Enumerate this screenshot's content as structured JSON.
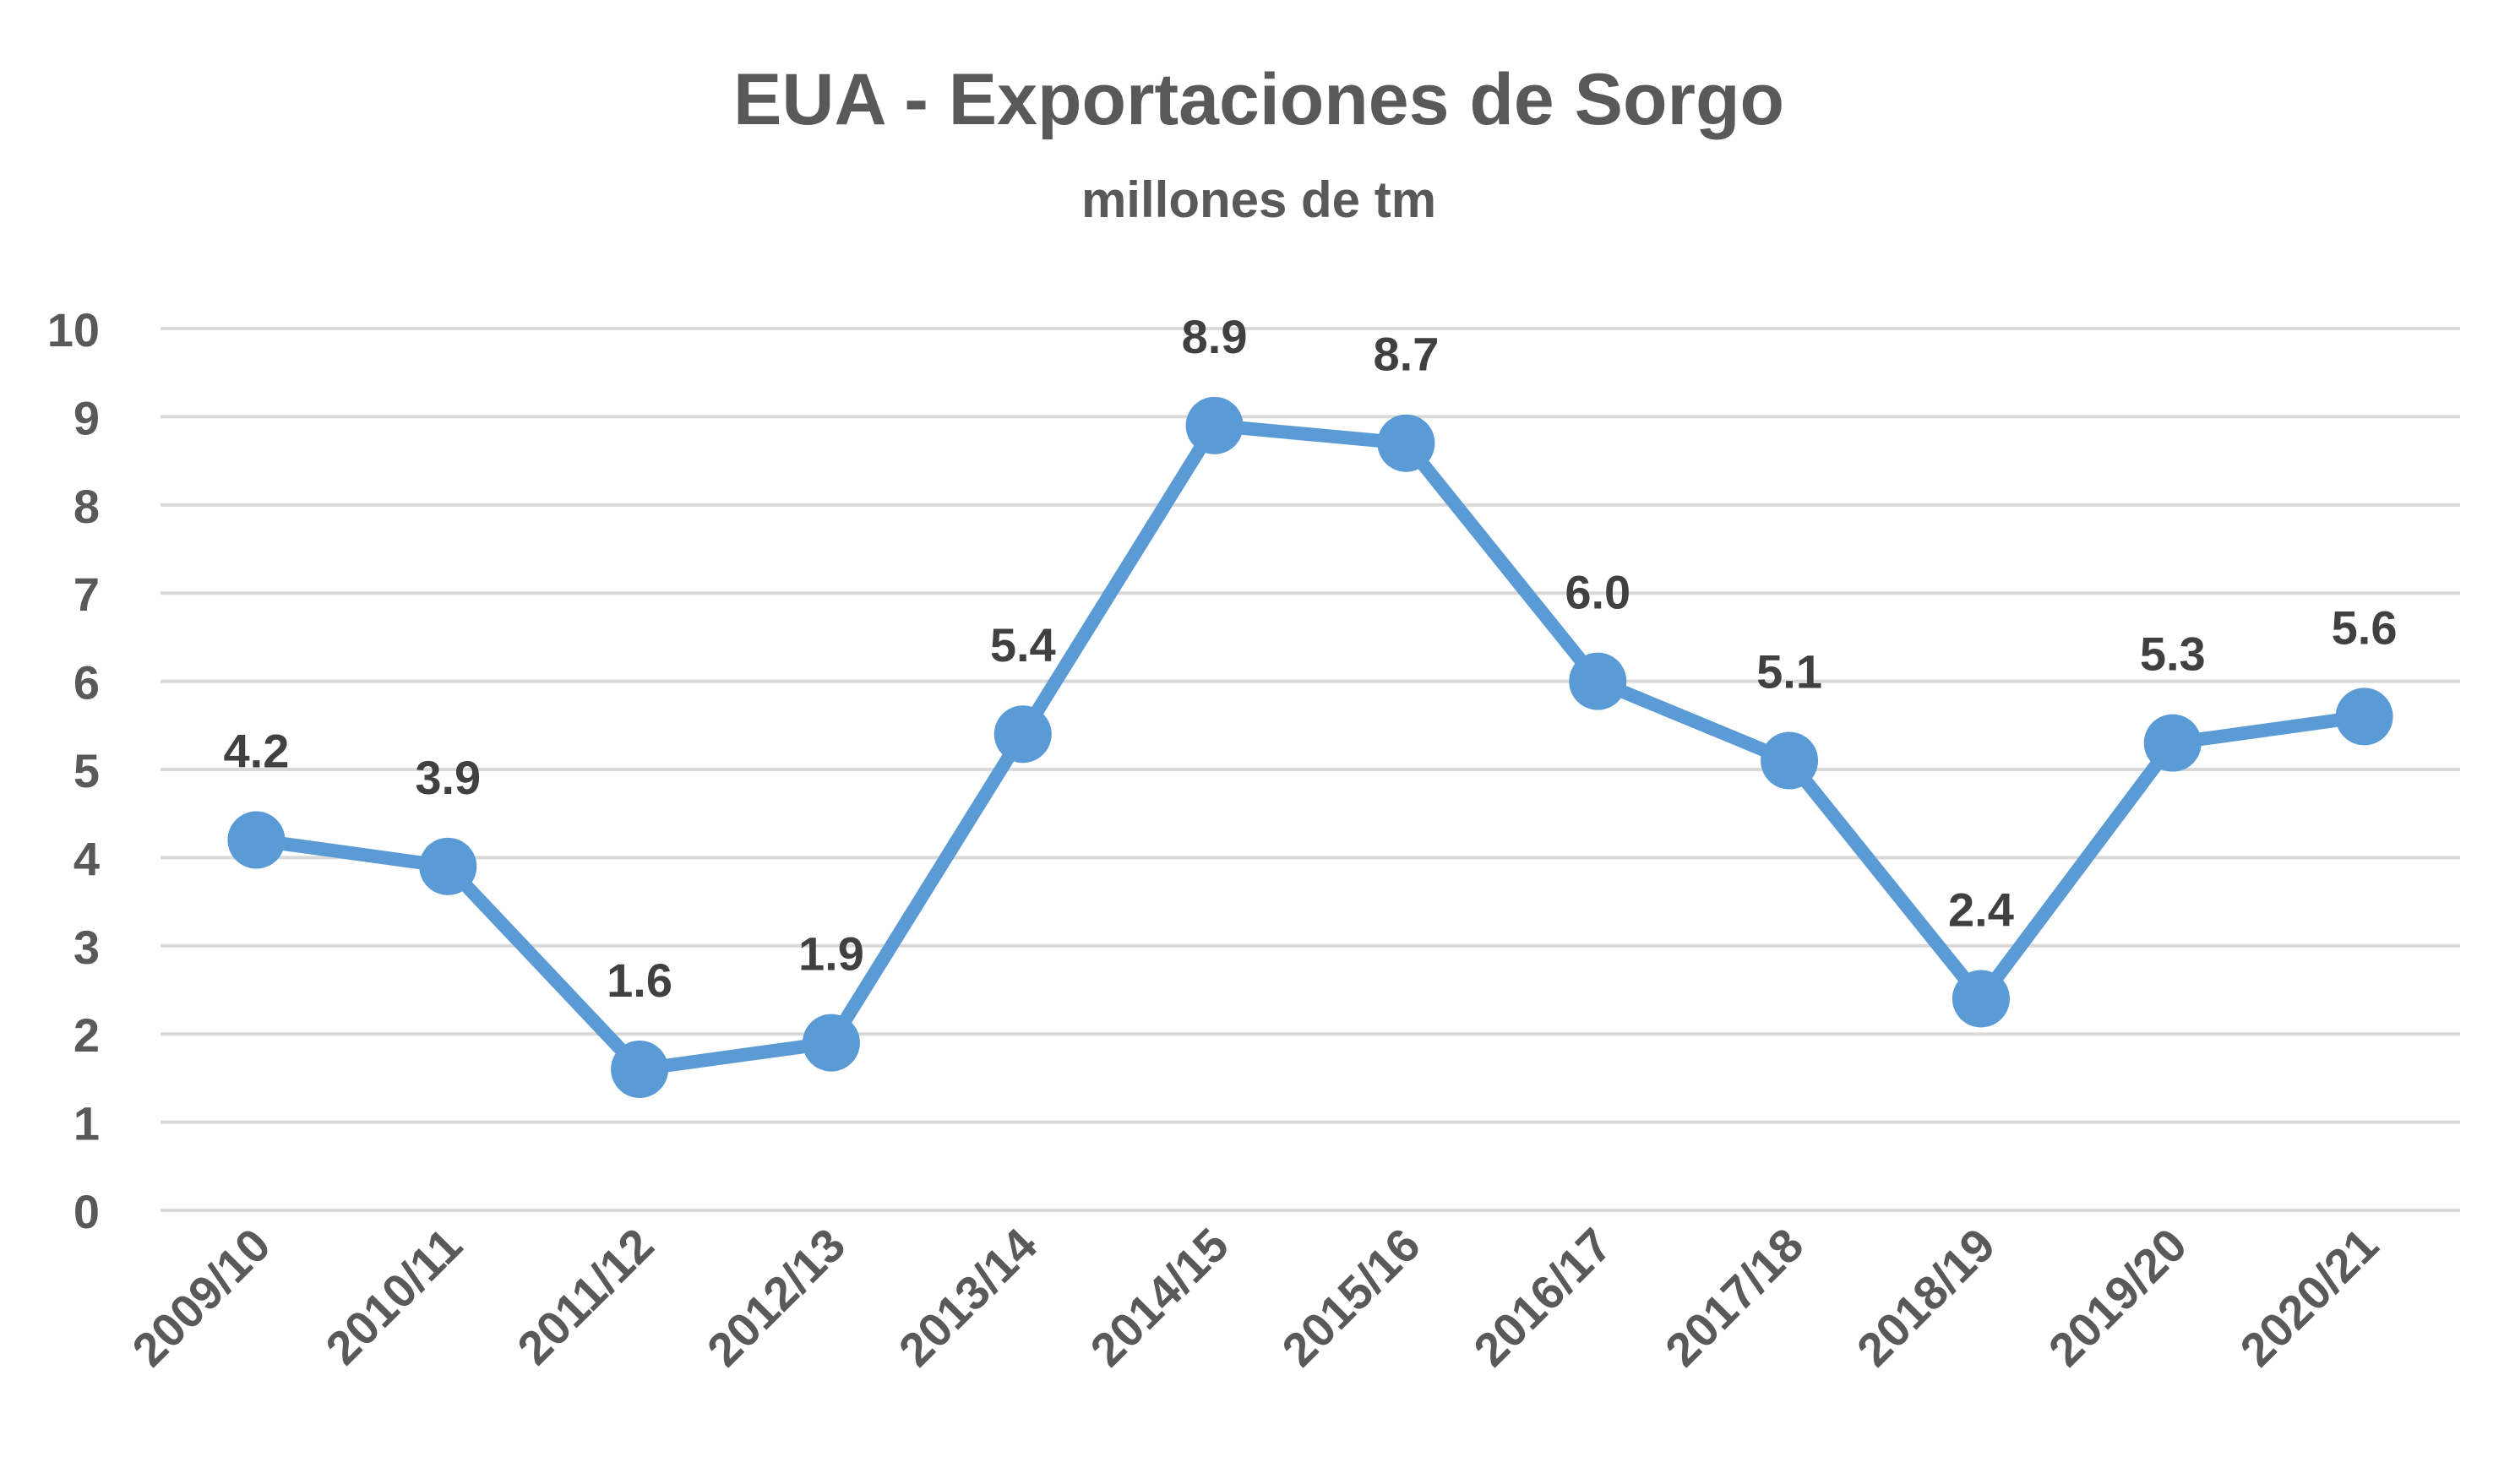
{
  "chart_data": {
    "type": "line",
    "title": "EUA - Exportaciones de Sorgo",
    "subtitle": "millones de tm",
    "xlabel": "",
    "ylabel": "",
    "categories": [
      "2009/10",
      "2010/11",
      "2011/12",
      "2012/13",
      "2013/14",
      "2014/15",
      "2015/16",
      "2016/17",
      "2017/18",
      "2018/19",
      "2019/20",
      "2020/21"
    ],
    "series": [
      {
        "values": [
          4.2,
          3.9,
          1.6,
          1.9,
          5.4,
          8.9,
          8.7,
          6.0,
          5.1,
          2.4,
          5.3,
          5.6
        ],
        "labels": [
          "4.2",
          "3.9",
          "1.6",
          "1.9",
          "5.4",
          "8.9",
          "8.7",
          "6.0",
          "5.1",
          "2.4",
          "5.3",
          "5.6"
        ],
        "color": "#5B9BD5"
      }
    ],
    "ylim": [
      0,
      10
    ],
    "yticks": [
      "0",
      "1",
      "2",
      "3",
      "4",
      "5",
      "6",
      "7",
      "8",
      "9",
      "10"
    ],
    "grid": true,
    "legend": "none",
    "gridline_color": "#D9D9D9",
    "text_color": "#595959"
  }
}
